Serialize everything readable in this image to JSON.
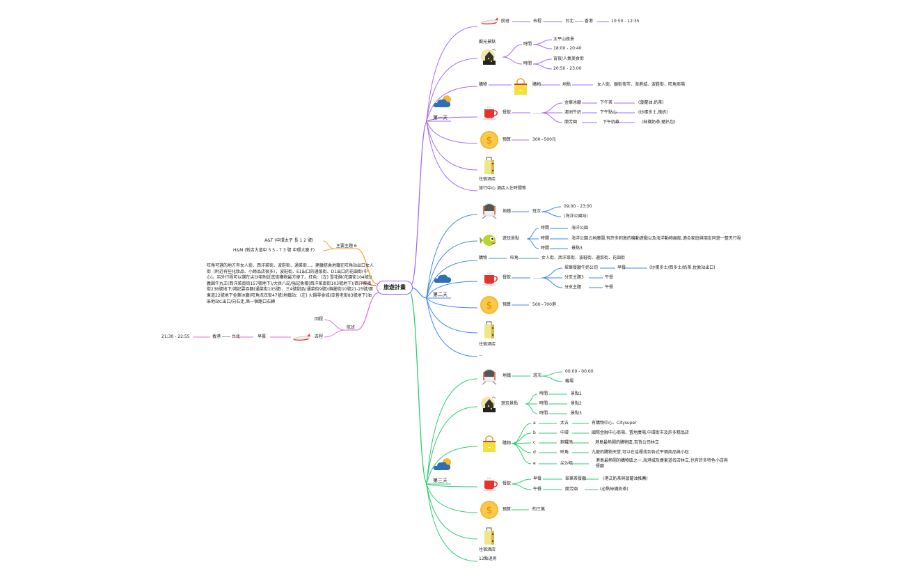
{
  "root": "旅遊計畫",
  "colors": {
    "day1": "#a36cf0",
    "day2": "#3f86f5",
    "day3": "#2ecc71",
    "topic": "#f5a623",
    "note": "#f0553a",
    "flight": "#f06ad6",
    "root_border": "#9b62f0"
  },
  "left": {
    "topic": {
      "label": "主要主題 6",
      "items": [
        "A&T (中環太子 長 1 2 號)",
        "H&M (新店大道中 5 5 - 7 3 號 中環大廈 F)"
      ]
    },
    "note": "旺角可選的地方有女人街、西洋菜街、波鞋街、通菜街…。建議搭乘地鐵在旺角站出口女人街（附近有些化妝品、小飾品店很多），波鞋街、E1出口的通菜街、D1出口的花園街(中心)。另外行程可以選在尖沙咀附近逛街購物最方便了。紅色：(左) 雪花酥(花園街104號)/義圓牛丸王(西洋菜南街157號地下)/大良八記/強記魚蛋(西洋菜南街103號地下)/西洋菜南街238號地下/鴻記雲吞麵(通菜街105號)、三4號甜品(通菜街9號)/錦麗街10號21-25號/廣東道22號地下金華冰廳(旺角洗衣街47號)地鐵站：(左) 火鍋零食城(亞皆老街83號地下)油麻地站C出口/向右走,第一個路口右轉",
    "flight": {
      "label": "航班",
      "return": "回程",
      "depart": "去程",
      "time_of_day": "早晨",
      "route": "香港 —— 台北",
      "time": "21:30 - 22:55"
    }
  },
  "day1": {
    "label": "第一天",
    "flight": {
      "label": "航班",
      "dir": "去程",
      "route": "台北 —— 香港",
      "time": "10:50 - 12:35"
    },
    "sight": {
      "label": "觀光景點",
      "slots": [
        {
          "time": "時間",
          "items": [
            "太平山夜景",
            "18:00 - 20:40"
          ]
        },
        {
          "time": "時間",
          "items": [
            "宵夜/人氣美食街",
            "20:50 - 23:00"
          ]
        }
      ]
    },
    "shop": {
      "label": "購物",
      "sub": "購物",
      "place": "地點",
      "detail": "女人街、廟街夜市、海港城、波鞋街、旺角商場"
    },
    "food": {
      "label": "餐飲",
      "mid": "……",
      "rows": [
        [
          "金華冰廳",
          "下午茶",
          "(菠蘿油,奶茶)"
        ],
        [
          "澳洲牛奶",
          "下午點心",
          "(炒蛋多士,燉奶)"
        ],
        [
          "蘭芳園",
          "下午奶茶",
          "(絲襪奶茶,豬扒包)"
        ]
      ]
    },
    "budget": {
      "label": "預算",
      "value": "300~500元"
    },
    "hotel": "住宿酒店",
    "note": "旅行中心 酒店入住時間等"
  },
  "day2": {
    "label": "第二天",
    "metro": {
      "label": "地鐵",
      "sub": "班次",
      "items": [
        "09:00 - 23:00",
        "(海洋公園站)"
      ]
    },
    "sight": {
      "label": "遊玩景點",
      "rows": [
        [
          "時間",
          "海洋公園"
        ],
        [
          "時間",
          "海洋公園占地廣闊,有許多刺激的機動遊戲以及海洋動物展館,適合家庭與朋友同遊一整天行程"
        ],
        [
          "時間",
          "景點3"
        ]
      ]
    },
    "shop": {
      "label": "購物",
      "place": "旺角",
      "detail": "女人街、西洋菜街、波鞋街、通菜街、花園街"
    },
    "food": {
      "label": "餐飲",
      "mid": "……",
      "rows": [
        [
          "翠華餐廳牛奶公司",
          "早餐",
          "(炒蛋多士/西多士/奶茶,佐敦站出口)"
        ],
        [
          "分支主題3",
          "午餐"
        ],
        [
          "分支主題",
          "午餐"
        ]
      ]
    },
    "budget": {
      "label": "預算",
      "value": "500~700港"
    },
    "hotel": "住宿酒店",
    "note": "..."
  },
  "day3": {
    "label": "第三天",
    "metro": {
      "label": "地鐵",
      "sub": "班次",
      "items": [
        "00:00 - 00:00",
        "機場"
      ]
    },
    "sight": {
      "label": "遊玩景點",
      "rows": [
        [
          "時間",
          "景點1"
        ],
        [
          "時間",
          "景點2"
        ],
        [
          "時間",
          "景點3"
        ]
      ]
    },
    "shop": {
      "label": "購物",
      "rows": [
        [
          "a",
          "太古",
          "有購物中心、Citysuper"
        ],
        [
          "b",
          "中環",
          "國際金融中心商場、置地廣場,中環街市及許多精品店"
        ],
        [
          "c",
          "銅鑼灣",
          "港島最熱鬧的購物區,百貨公司林立"
        ],
        [
          "d",
          "旺角",
          "九龍的購物天堂,可以在這裡找到各式平價商品與小吃"
        ],
        [
          "e",
          "尖沙咀",
          "港島最熱鬧的購物區之一,海港城及廣東道名店林立,也有許多特色小店與餐廳"
        ]
      ]
    },
    "food": {
      "label": "餐飲",
      "rows": [
        [
          "早餐",
          "翠華茶餐廳",
          "(港式奶茶與菠蘿油推薦)"
        ],
        [
          "午餐",
          "蘭芳園",
          "(必點絲襪奶茶)"
        ]
      ]
    },
    "budget": {
      "label": "預算",
      "value": "約三萬"
    },
    "hotel": "住宿酒店",
    "note": "12點退房"
  }
}
